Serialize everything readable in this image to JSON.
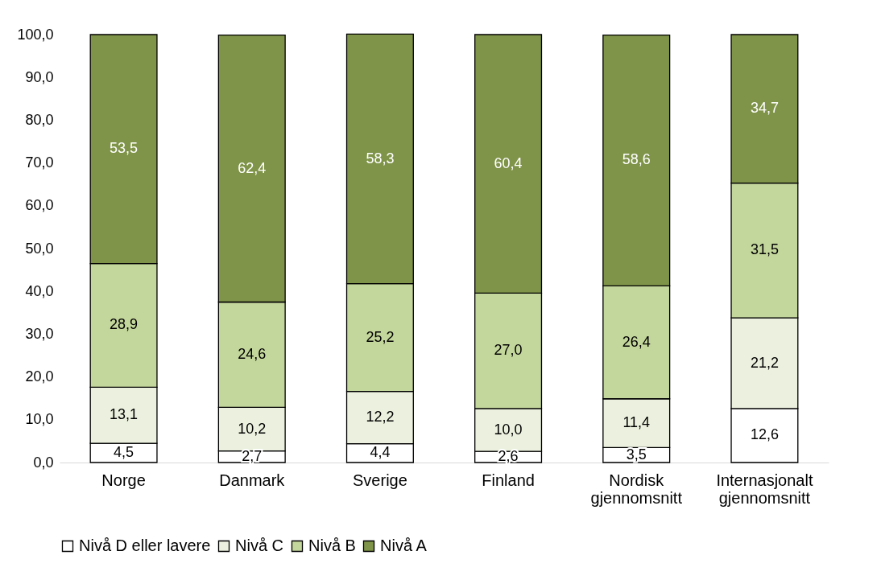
{
  "chart_data": {
    "type": "bar",
    "stacked": true,
    "categories": [
      "Norge",
      "Danmark",
      "Sverige",
      "Finland",
      "Nordisk gjennomsnitt",
      "Internasjonalt gjennomsnitt"
    ],
    "series": [
      {
        "name": "Nivå D eller lavere",
        "color": "#ffffff",
        "values": [
          4.5,
          2.7,
          4.4,
          2.6,
          3.5,
          12.6
        ],
        "value_labels": [
          "4,5",
          "2,7",
          "4,4",
          "2,6",
          "3,5",
          "12,6"
        ]
      },
      {
        "name": "Nivå C",
        "color": "#ebf1de",
        "values": [
          13.1,
          10.2,
          12.2,
          10.0,
          11.4,
          21.2
        ],
        "value_labels": [
          "13,1",
          "10,2",
          "12,2",
          "10,0",
          "11,4",
          "21,2"
        ]
      },
      {
        "name": "Nivå B",
        "color": "#c3d69b",
        "values": [
          28.9,
          24.6,
          25.2,
          27.0,
          26.4,
          31.5
        ],
        "value_labels": [
          "28,9",
          "24,6",
          "25,2",
          "27,0",
          "26,4",
          "31,5"
        ]
      },
      {
        "name": "Nivå A",
        "color": "#7f9448",
        "values": [
          53.5,
          62.4,
          58.3,
          60.4,
          58.6,
          34.7
        ],
        "value_labels": [
          "53,5",
          "62,4",
          "58,3",
          "60,4",
          "58,6",
          "34,7"
        ]
      }
    ],
    "ylim": [
      0,
      100
    ],
    "yticks": [
      {
        "value": 0,
        "label": "0,0"
      },
      {
        "value": 10,
        "label": "10,0"
      },
      {
        "value": 20,
        "label": "20,0"
      },
      {
        "value": 30,
        "label": "30,0"
      },
      {
        "value": 40,
        "label": "40,0"
      },
      {
        "value": 50,
        "label": "50,0"
      },
      {
        "value": 60,
        "label": "60,0"
      },
      {
        "value": 70,
        "label": "70,0"
      },
      {
        "value": 80,
        "label": "80,0"
      },
      {
        "value": 90,
        "label": "90,0"
      },
      {
        "value": 100,
        "label": "100,0"
      }
    ],
    "grid": false,
    "legend": "bottom"
  }
}
